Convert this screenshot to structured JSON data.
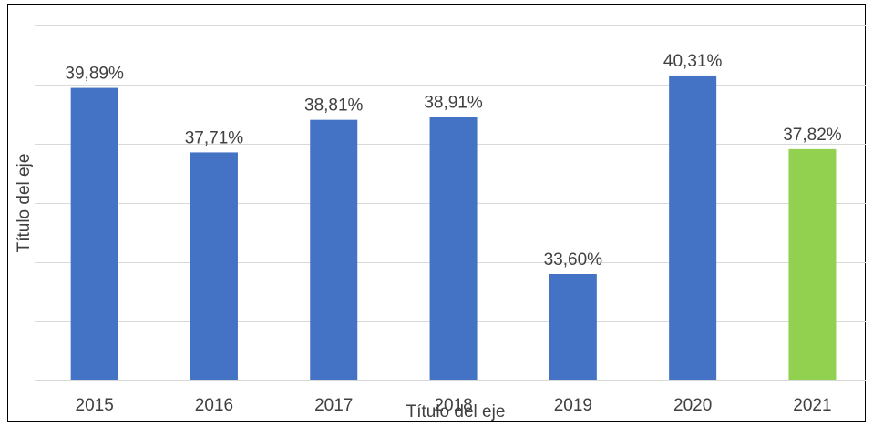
{
  "chart_data": {
    "type": "bar",
    "categories": [
      "2015",
      "2016",
      "2017",
      "2018",
      "2019",
      "2020",
      "2021"
    ],
    "values": [
      39.89,
      37.71,
      38.81,
      38.91,
      33.6,
      40.31,
      37.82
    ],
    "value_labels": [
      "39,89%",
      "37,71%",
      "38,81%",
      "38,91%",
      "33,60%",
      "40,31%",
      "37,82%"
    ],
    "colors": [
      "#4472c4",
      "#4472c4",
      "#4472c4",
      "#4472c4",
      "#4472c4",
      "#4472c4",
      "#92d050"
    ],
    "xlabel": "Título del eje",
    "ylabel": "Título del eje",
    "ylim": [
      30,
      42
    ],
    "yticks": [
      30,
      32,
      34,
      36,
      38,
      40,
      42
    ],
    "grid": true
  }
}
